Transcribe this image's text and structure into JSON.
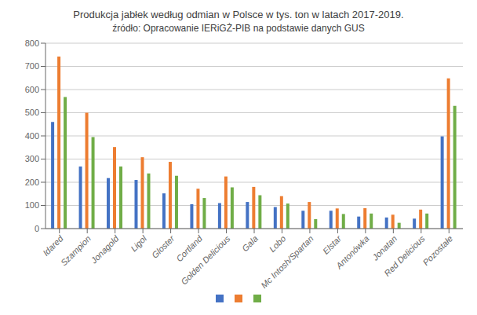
{
  "chart_data": {
    "type": "bar",
    "title": "Produkcja jabłek według odmian w Polsce w tys. ton w latach 2017-2019.",
    "subtitle": "źródło: Opracowanie IERiGŻ-PIB na podstawie danych GUS",
    "categories": [
      "Idared",
      "Szampion",
      "Jonagold",
      "Ligol",
      "Gloster",
      "Cortland",
      "Golden Delicious",
      "Gala",
      "Lobo",
      "Mc Intosh/Spartan",
      "Elstar",
      "Antonówka",
      "Jonatan",
      "Red Delicious",
      "Pozostałe"
    ],
    "series": [
      {
        "color": "#4472C4",
        "values": [
          460,
          268,
          218,
          210,
          152,
          105,
          110,
          115,
          93,
          77,
          77,
          52,
          48,
          43,
          398
        ]
      },
      {
        "color": "#ED7D31",
        "values": [
          742,
          500,
          352,
          308,
          288,
          172,
          225,
          180,
          140,
          115,
          87,
          88,
          60,
          82,
          648
        ]
      },
      {
        "color": "#70AD47",
        "values": [
          568,
          395,
          268,
          238,
          228,
          132,
          178,
          144,
          108,
          41,
          63,
          65,
          25,
          65,
          530
        ]
      }
    ],
    "ylim": [
      0,
      800
    ],
    "yticks": [
      0,
      100,
      200,
      300,
      400,
      500,
      600,
      700,
      800
    ],
    "grid": true,
    "legend": "bottom"
  }
}
